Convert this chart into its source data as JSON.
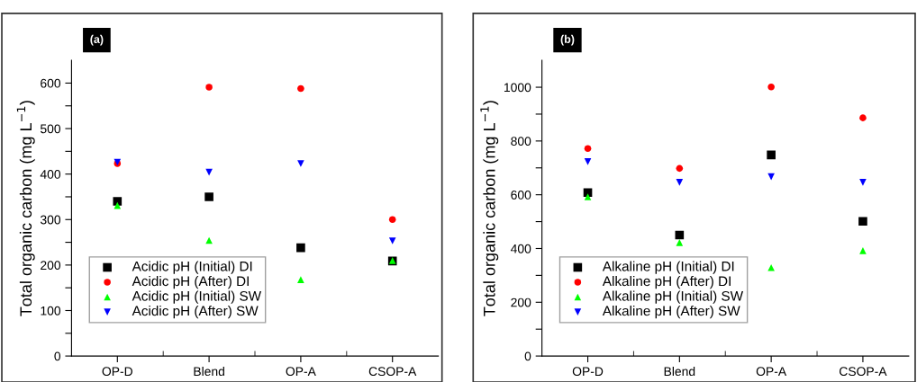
{
  "chart_data": [
    {
      "type": "scatter",
      "title": "(a)",
      "ylabel": "Total organic carbon (mg L$^{−1}$)",
      "categories": [
        "OP-D",
        "Blend",
        "OP-A",
        "CSOP-A"
      ],
      "ylim": [
        0,
        650
      ],
      "yticks": [
        0,
        {
          "value": 50,
          "label": null
        },
        100,
        {
          "value": 150,
          "label": null
        },
        200,
        {
          "value": 250,
          "label": null
        },
        300,
        {
          "value": 350,
          "label": null
        },
        400,
        {
          "value": 450,
          "label": null
        },
        500,
        {
          "value": 550,
          "label": null
        },
        600
      ],
      "grid": false,
      "legend": "bottom left",
      "series": [
        {
          "name": "Acidic pH (Initial) DI",
          "color": "#000000",
          "marker": "square",
          "values": [
            340,
            350,
            238,
            209
          ]
        },
        {
          "name": "Acidic pH (After) DI",
          "color": "#ff0000",
          "marker": "circle",
          "values": [
            423,
            591,
            588,
            300
          ]
        },
        {
          "name": "Acidic pH (Initial) SW",
          "color": "#00ff00",
          "marker": "triangle",
          "values": [
            331,
            254,
            168,
            210
          ]
        },
        {
          "name": "Acidic pH (After) SW",
          "color": "#0000ff",
          "marker": "triangle-down",
          "values": [
            426,
            404,
            423,
            253
          ]
        }
      ]
    },
    {
      "type": "scatter",
      "title": "(b)",
      "ylabel": "Total organic carbon (mg L$^{−1}$)",
      "categories": [
        "OP-D",
        "Blend",
        "OP-A",
        "CSOP-A"
      ],
      "ylim": [
        0,
        1100
      ],
      "yticks": [
        0,
        {
          "value": 100,
          "label": null
        },
        200,
        {
          "value": 300,
          "label": null
        },
        400,
        {
          "value": 500,
          "label": null
        },
        600,
        {
          "value": 700,
          "label": null
        },
        800,
        {
          "value": 900,
          "label": null
        },
        1000
      ],
      "grid": false,
      "legend": "bottom left",
      "series": [
        {
          "name": "Alkaline pH (Initial) DI",
          "color": "#000000",
          "marker": "square",
          "values": [
            608,
            450,
            748,
            501
          ]
        },
        {
          "name": "Alkaline pH (After) DI",
          "color": "#ff0000",
          "marker": "circle",
          "values": [
            772,
            698,
            1001,
            886
          ]
        },
        {
          "name": "Alkaline pH (Initial) SW",
          "color": "#00ff00",
          "marker": "triangle",
          "values": [
            592,
            422,
            329,
            392
          ]
        },
        {
          "name": "Alkaline pH (After) SW",
          "color": "#0000ff",
          "marker": "triangle-down",
          "values": [
            723,
            646,
            667,
            646
          ]
        }
      ]
    }
  ]
}
